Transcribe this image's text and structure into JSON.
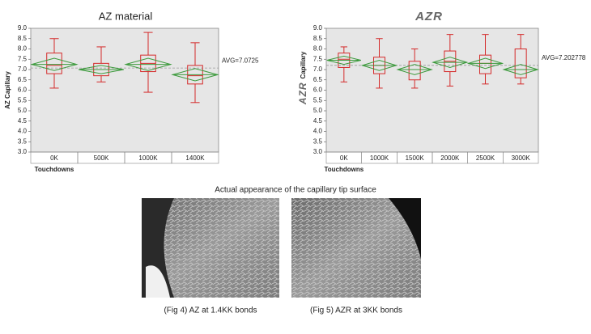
{
  "chart_data": [
    {
      "type": "box",
      "title": "AZ material",
      "ylabel": "AZ Capillary",
      "xlabel": "Touchdowns",
      "categories": [
        "0K",
        "500K",
        "1000K",
        "1400K"
      ],
      "boxes": [
        {
          "min": 6.1,
          "q1": 6.8,
          "median": 7.2,
          "q3": 7.8,
          "max": 8.5,
          "mean": 7.25,
          "ci_low": 6.95,
          "ci_high": 7.55
        },
        {
          "min": 6.4,
          "q1": 6.7,
          "median": 7.0,
          "q3": 7.3,
          "max": 8.1,
          "mean": 7.0,
          "ci_low": 6.8,
          "ci_high": 7.2
        },
        {
          "min": 5.9,
          "q1": 6.9,
          "median": 7.3,
          "q3": 7.7,
          "max": 8.8,
          "mean": 7.25,
          "ci_low": 6.95,
          "ci_high": 7.55
        },
        {
          "min": 5.4,
          "q1": 6.3,
          "median": 6.7,
          "q3": 7.2,
          "max": 8.3,
          "mean": 6.75,
          "ci_low": 6.45,
          "ci_high": 7.05
        }
      ],
      "avg": 7.0725,
      "avg_label": "AVG=7.0725",
      "ylim": [
        3,
        9
      ],
      "yticks": [
        {
          "value": 3,
          "label": "3.0"
        },
        {
          "value": 3.5,
          "label": "3.5"
        },
        {
          "value": 4,
          "label": "4.0"
        },
        {
          "value": 4.5,
          "label": "4.5"
        },
        {
          "value": 5,
          "label": "5.0"
        },
        {
          "value": 5.5,
          "label": "5.5"
        },
        {
          "value": 6,
          "label": "6.0"
        },
        {
          "value": 6.5,
          "label": "6.5"
        },
        {
          "value": 7,
          "label": "7.0"
        },
        {
          "value": 7.5,
          "label": "7.5"
        },
        {
          "value": 8,
          "label": "8.0"
        },
        {
          "value": 8.5,
          "label": "8.5"
        },
        {
          "value": 9,
          "label": "9.0"
        }
      ],
      "box_color": "#d42a2a",
      "diamond_color": "#3c9a3c"
    },
    {
      "type": "box",
      "title": "AZR",
      "ylabel_logo": "AZR",
      "ylabel": "Capillary",
      "xlabel": "Touchdowns",
      "categories": [
        "0K",
        "1000K",
        "1500K",
        "2000K",
        "2500K",
        "3000K"
      ],
      "boxes": [
        {
          "min": 6.4,
          "q1": 7.1,
          "median": 7.5,
          "q3": 7.8,
          "max": 8.1,
          "mean": 7.45,
          "ci_low": 7.25,
          "ci_high": 7.65
        },
        {
          "min": 6.1,
          "q1": 6.8,
          "median": 7.2,
          "q3": 7.6,
          "max": 8.5,
          "mean": 7.2,
          "ci_low": 6.95,
          "ci_high": 7.45
        },
        {
          "min": 6.1,
          "q1": 6.5,
          "median": 7.0,
          "q3": 7.4,
          "max": 8.0,
          "mean": 7.0,
          "ci_low": 6.75,
          "ci_high": 7.25
        },
        {
          "min": 6.2,
          "q1": 6.9,
          "median": 7.4,
          "q3": 7.9,
          "max": 8.7,
          "mean": 7.35,
          "ci_low": 7.1,
          "ci_high": 7.6
        },
        {
          "min": 6.3,
          "q1": 6.8,
          "median": 7.3,
          "q3": 7.7,
          "max": 8.7,
          "mean": 7.3,
          "ci_low": 7.05,
          "ci_high": 7.55
        },
        {
          "min": 6.3,
          "q1": 6.6,
          "median": 7.0,
          "q3": 8.0,
          "max": 8.7,
          "mean": 7.0,
          "ci_low": 6.75,
          "ci_high": 7.25
        }
      ],
      "avg": 7.202778,
      "avg_label": "AVG=7.202778",
      "ylim": [
        3,
        9
      ],
      "yticks": [
        {
          "value": 3,
          "label": "3.0"
        },
        {
          "value": 3.5,
          "label": "3.5"
        },
        {
          "value": 4,
          "label": "4.0"
        },
        {
          "value": 4.5,
          "label": "4.5"
        },
        {
          "value": 5,
          "label": "5.0"
        },
        {
          "value": 5.5,
          "label": "5.5"
        },
        {
          "value": 6,
          "label": "6.0"
        },
        {
          "value": 6.5,
          "label": "6.5"
        },
        {
          "value": 7,
          "label": "7.0"
        },
        {
          "value": 7.5,
          "label": "7.5"
        },
        {
          "value": 8,
          "label": "8.0"
        },
        {
          "value": 8.5,
          "label": "8.5"
        },
        {
          "value": 9,
          "label": "9.0"
        }
      ],
      "box_color": "#d42a2a",
      "diamond_color": "#3c9a3c"
    }
  ],
  "figure": {
    "heading": "Actual appearance of the capillary tip surface",
    "captions": [
      "(Fig 4) AZ at 1.4KK bonds",
      "(Fig 5) AZR at 3KK bonds"
    ]
  }
}
